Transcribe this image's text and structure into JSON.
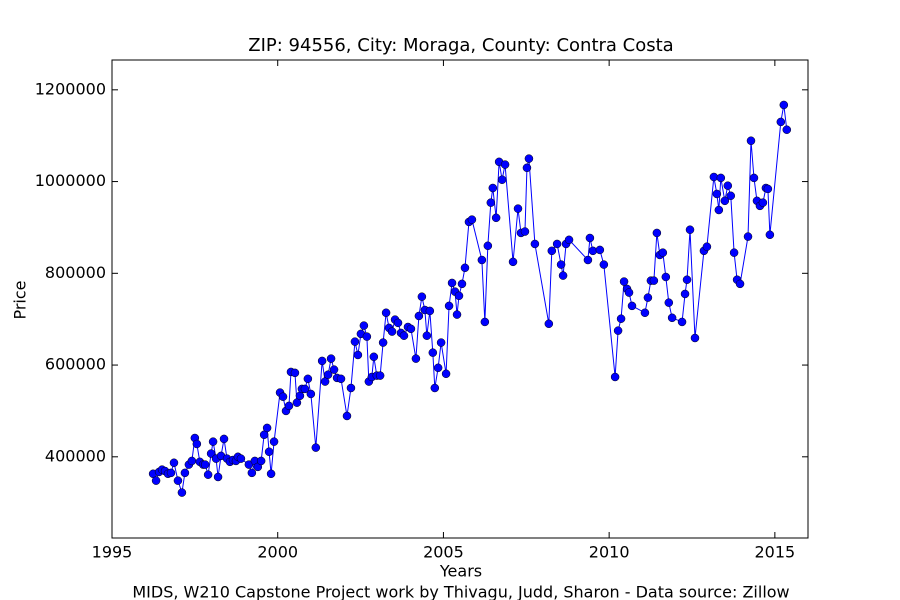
{
  "chart_data": {
    "type": "line",
    "title": "ZIP: 94556, City: Moraga, County: Contra Costa",
    "x_label": "Years",
    "y_label": "Price",
    "footnote": "MIDS, W210 Capstone Project work by Thivagu, Judd, Sharon  -  Data source: Zillow",
    "color": "#0000ff",
    "markers": true,
    "grid": false,
    "xlim": [
      1995,
      2016
    ],
    "xticks": [
      1995,
      2000,
      2005,
      2010,
      2015
    ],
    "ylim": [
      223000,
      1265000
    ],
    "yticks": [
      400000,
      600000,
      800000,
      1000000,
      1200000
    ],
    "x": [
      1996.24,
      1996.33,
      1996.42,
      1996.51,
      1996.6,
      1996.69,
      1996.78,
      1996.87,
      1996.99,
      1997.11,
      1997.2,
      1997.32,
      1997.41,
      1997.5,
      1997.56,
      1997.65,
      1997.75,
      1997.81,
      1997.9,
      1997.99,
      1998.05,
      1998.14,
      1998.2,
      1998.29,
      1998.38,
      1998.47,
      1998.56,
      1998.65,
      1998.74,
      1998.8,
      1998.89,
      1999.13,
      1999.22,
      1999.31,
      1999.4,
      1999.5,
      1999.59,
      1999.68,
      1999.74,
      1999.8,
      1999.89,
      2000.07,
      2000.16,
      2000.25,
      2000.34,
      2000.4,
      2000.52,
      2000.58,
      2000.67,
      2000.73,
      2000.82,
      2000.91,
      2001.0,
      2001.15,
      2001.34,
      2001.43,
      2001.52,
      2001.61,
      2001.7,
      2001.79,
      2001.91,
      2002.09,
      2002.21,
      2002.33,
      2002.42,
      2002.51,
      2002.6,
      2002.69,
      2002.75,
      2002.84,
      2002.9,
      2002.99,
      2003.09,
      2003.18,
      2003.27,
      2003.36,
      2003.45,
      2003.54,
      2003.63,
      2003.72,
      2003.81,
      2003.93,
      2004.02,
      2004.17,
      2004.26,
      2004.35,
      2004.44,
      2004.5,
      2004.59,
      2004.68,
      2004.74,
      2004.84,
      2004.93,
      2005.08,
      2005.17,
      2005.26,
      2005.35,
      2005.41,
      2005.47,
      2005.56,
      2005.65,
      2005.77,
      2005.86,
      2006.16,
      2006.25,
      2006.34,
      2006.43,
      2006.49,
      2006.59,
      2006.68,
      2006.77,
      2006.86,
      2007.1,
      2007.25,
      2007.34,
      2007.46,
      2007.52,
      2007.58,
      2007.76,
      2008.18,
      2008.27,
      2008.43,
      2008.55,
      2008.61,
      2008.7,
      2008.79,
      2009.36,
      2009.42,
      2009.51,
      2009.72,
      2009.84,
      2010.18,
      2010.27,
      2010.36,
      2010.45,
      2010.54,
      2010.6,
      2010.69,
      2011.08,
      2011.17,
      2011.26,
      2011.35,
      2011.44,
      2011.53,
      2011.62,
      2011.71,
      2011.8,
      2011.9,
      2012.2,
      2012.29,
      2012.35,
      2012.44,
      2012.59,
      2012.86,
      2012.95,
      2013.16,
      2013.25,
      2013.31,
      2013.37,
      2013.49,
      2013.58,
      2013.67,
      2013.77,
      2013.86,
      2013.95,
      2014.19,
      2014.28,
      2014.37,
      2014.46,
      2014.55,
      2014.64,
      2014.73,
      2014.79,
      2014.85,
      2015.18,
      2015.27,
      2015.36
    ],
    "values": [
      363000,
      348000,
      367000,
      372000,
      369000,
      363000,
      365000,
      387000,
      348000,
      322000,
      365000,
      383000,
      391000,
      441000,
      428000,
      389000,
      383000,
      383000,
      361000,
      407000,
      433000,
      396000,
      356000,
      402000,
      439000,
      396000,
      389000,
      393000,
      391000,
      400000,
      396000,
      383000,
      365000,
      391000,
      378000,
      391000,
      448000,
      463000,
      411000,
      363000,
      433000,
      540000,
      531000,
      500000,
      511000,
      585000,
      583000,
      518000,
      533000,
      548000,
      548000,
      570000,
      537000,
      420000,
      609000,
      564000,
      579000,
      614000,
      590000,
      572000,
      570000,
      489000,
      550000,
      651000,
      622000,
      668000,
      686000,
      662000,
      564000,
      574000,
      618000,
      577000,
      577000,
      649000,
      714000,
      681000,
      673000,
      699000,
      692000,
      670000,
      664000,
      683000,
      679000,
      614000,
      707000,
      749000,
      720000,
      664000,
      718000,
      627000,
      550000,
      594000,
      649000,
      581000,
      729000,
      779000,
      760000,
      710000,
      751000,
      777000,
      812000,
      912000,
      917000,
      829000,
      694000,
      860000,
      954000,
      986000,
      921000,
      1043000,
      1004000,
      1037000,
      825000,
      941000,
      888000,
      891000,
      1030000,
      1050000,
      864000,
      690000,
      849000,
      864000,
      819000,
      795000,
      864000,
      873000,
      829000,
      877000,
      849000,
      851000,
      819000,
      574000,
      675000,
      701000,
      782000,
      766000,
      758000,
      729000,
      714000,
      747000,
      784000,
      784000,
      888000,
      840000,
      845000,
      792000,
      736000,
      703000,
      694000,
      755000,
      786000,
      895000,
      659000,
      849000,
      858000,
      1010000,
      973000,
      938000,
      1008000,
      958000,
      991000,
      969000,
      845000,
      786000,
      777000,
      880000,
      1089000,
      1008000,
      958000,
      947000,
      954000,
      986000,
      984000,
      884000,
      1130000,
      1167000,
      1113000
    ]
  }
}
